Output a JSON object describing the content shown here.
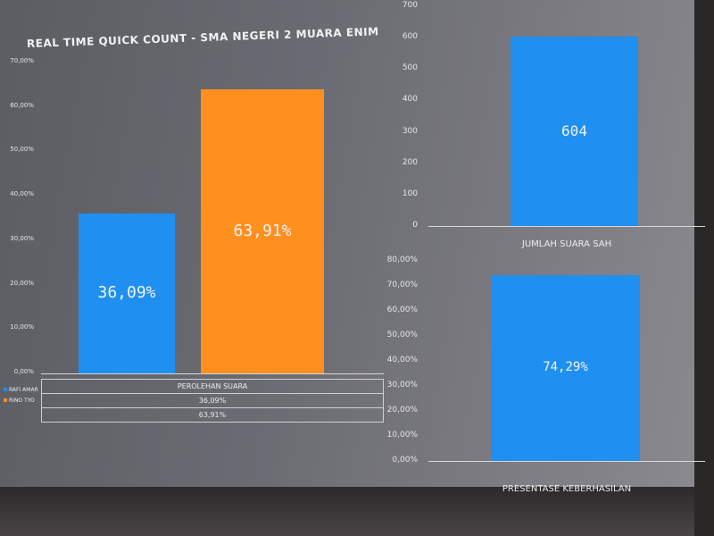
{
  "title": "REAL TIME QUICK COUNT - SMA NEGERI 2 MUARA ENIM",
  "chart_data": [
    {
      "type": "bar",
      "categories": [
        "PEROLEHAN SUARA"
      ],
      "series": [
        {
          "name": "RAFI AMAR",
          "values": [
            36.09
          ],
          "label": "36,09%",
          "table_value": "36,09%",
          "color": "#1f8ff0"
        },
        {
          "name": "RINO TYO",
          "values": [
            63.91
          ],
          "label": "63,91%",
          "table_value": "63,91%",
          "color": "#ff8f1f"
        }
      ],
      "ylim": [
        0,
        70
      ],
      "yticks": [
        "0,00%",
        "10,00%",
        "20,00%",
        "30,00%",
        "40,00%",
        "50,00%",
        "60,00%",
        "70,00%"
      ],
      "legend": "bottom-left data table"
    },
    {
      "type": "bar",
      "categories": [
        "JUMLAH SUARA SAH"
      ],
      "values": [
        604
      ],
      "labels": [
        "604"
      ],
      "color": "#1f8ff0",
      "ylim": [
        0,
        700
      ],
      "yticks": [
        "0",
        "100",
        "200",
        "300",
        "400",
        "500",
        "600",
        "700"
      ]
    },
    {
      "type": "bar",
      "categories": [
        "PRESENTASE KEBERHASILAN"
      ],
      "values": [
        74.29
      ],
      "labels": [
        "74,29%"
      ],
      "color": "#1f8ff0",
      "ylim": [
        0,
        80
      ],
      "yticks": [
        "0,00%",
        "10,00%",
        "20,00%",
        "30,00%",
        "40,00%",
        "50,00%",
        "60,00%",
        "70,00%",
        "80,00%"
      ]
    }
  ]
}
